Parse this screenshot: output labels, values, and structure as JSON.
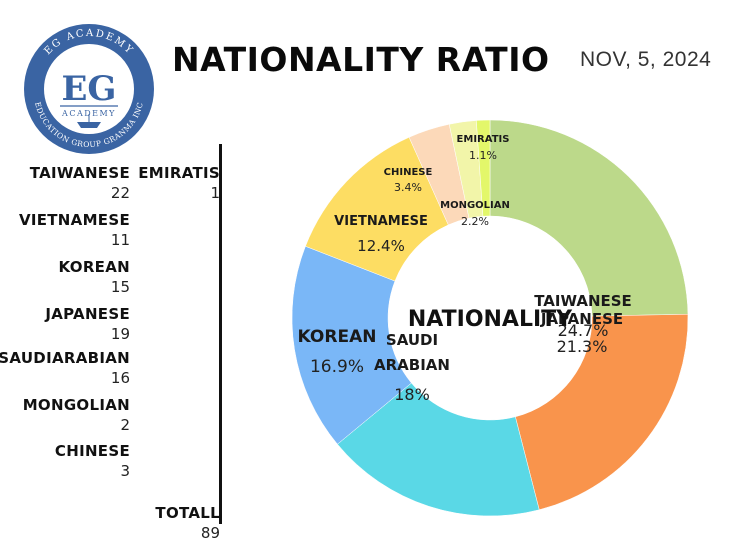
{
  "header": {
    "title": "NATIONALITY RATIO",
    "date": "NOV, 5, 2024"
  },
  "logo": {
    "main_letters": "EG",
    "ring_top": "EG ACADEMY",
    "ring_bottom": "EDUCATION GROUP GRANMA INC",
    "inner_word": "ACADEMY",
    "colors": {
      "ring": "#3a64a3",
      "inner_border": "#3a64a3",
      "bg": "#ffffff"
    }
  },
  "counts": [
    {
      "label": "TAIWANESE",
      "value": "22"
    },
    {
      "label": "VIETNAMESE",
      "value": "11"
    },
    {
      "label": "KOREAN",
      "value": "15"
    },
    {
      "label": "JAPANESE",
      "value": "19"
    },
    {
      "label": "SAUDIARABIAN",
      "value": "16"
    },
    {
      "label": "MONGOLIAN",
      "value": "2"
    },
    {
      "label": "CHINESE",
      "value": "3"
    }
  ],
  "counts_col2": [
    {
      "label": "EMIRATIS",
      "value": "1"
    }
  ],
  "total": {
    "label": "TOTALL",
    "value": "89"
  },
  "chart_data": {
    "type": "pie",
    "donut": true,
    "center_label": "NATIONALITY",
    "slices": [
      {
        "label": "TAIWANESE",
        "value": 24.7,
        "pct_label": "24.7%",
        "color": "#bcd98a"
      },
      {
        "label": "JAPANESE",
        "value": 21.3,
        "pct_label": "21.3%",
        "color": "#f9944c"
      },
      {
        "label": "SAUDI ARABIAN",
        "value": 18,
        "pct_label": "18%",
        "color": "#5ad8e6"
      },
      {
        "label": "KOREAN",
        "value": 16.9,
        "pct_label": "16.9%",
        "color": "#7ab7f7"
      },
      {
        "label": "VIETNAMESE",
        "value": 12.4,
        "pct_label": "12.4%",
        "color": "#fddd63"
      },
      {
        "label": "CHINESE",
        "value": 3.4,
        "pct_label": "3.4%",
        "color": "#fcd9b9"
      },
      {
        "label": "MONGOLIAN",
        "value": 2.2,
        "pct_label": "2.2%",
        "color": "#f2f5a9"
      },
      {
        "label": "EMIRATIS",
        "value": 1.1,
        "pct_label": "1.1%",
        "color": "#e3f76a"
      }
    ]
  }
}
